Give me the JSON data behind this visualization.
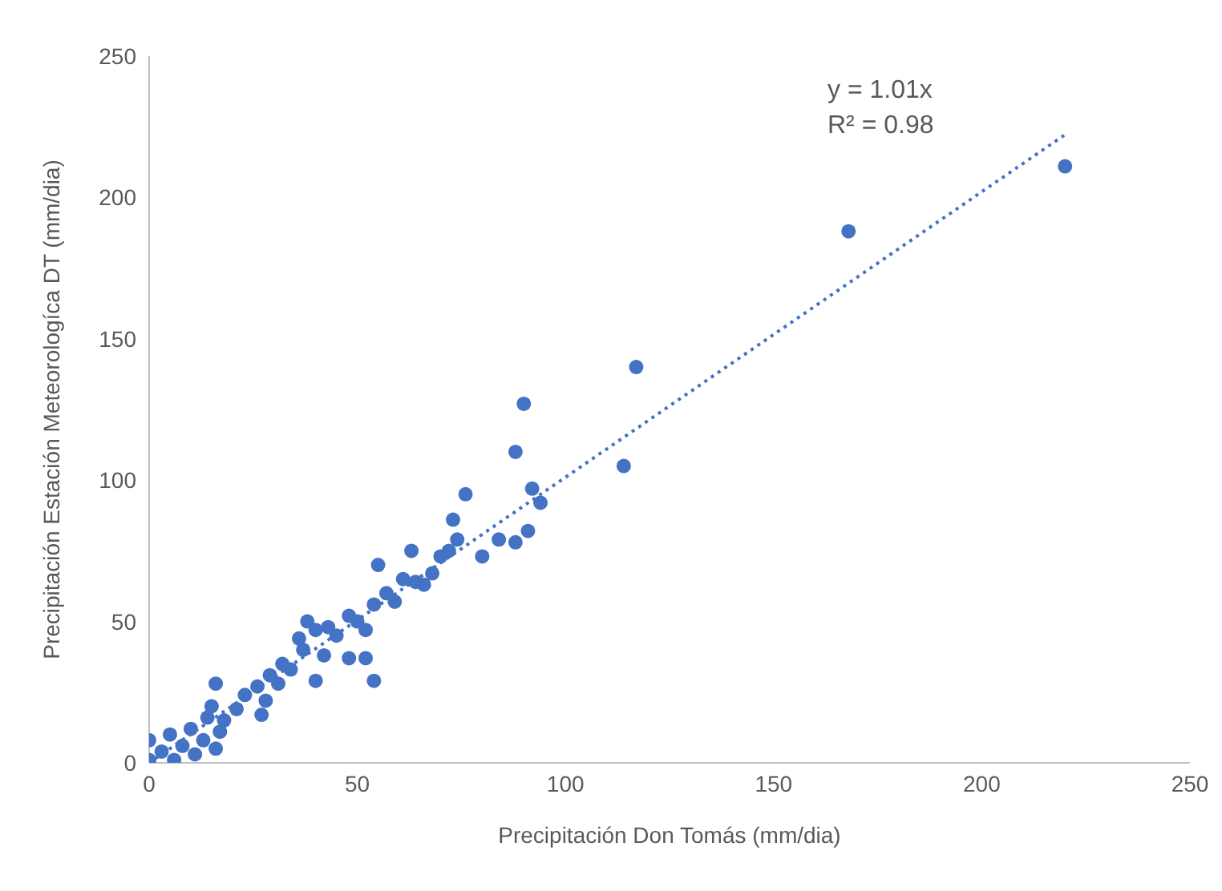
{
  "chart_data": {
    "type": "scatter",
    "xlabel": "Precipitación Don Tomás (mm/dia)",
    "ylabel": "Precipitación Estación Meteorologíca DT (mm/dia)",
    "xlim": [
      0,
      250
    ],
    "ylim": [
      0,
      250
    ],
    "xticks": [
      0,
      50,
      100,
      150,
      200,
      250
    ],
    "yticks": [
      0,
      50,
      100,
      150,
      200,
      250
    ],
    "marker": "circle",
    "annotations": [
      "y = 1.01x",
      "R² = 0.98"
    ],
    "series": [
      {
        "color": "#4472c4",
        "x": [
          0,
          0,
          3,
          5,
          6,
          8,
          10,
          11,
          13,
          14,
          16,
          15,
          16,
          17,
          18,
          21,
          23,
          26,
          27,
          28,
          29,
          31,
          32,
          34,
          36,
          37,
          38,
          40,
          40,
          42,
          43,
          45,
          48,
          48,
          50,
          52,
          52,
          54,
          54,
          55,
          57,
          59,
          61,
          63,
          64,
          66,
          68,
          70,
          72,
          73,
          74,
          76,
          80,
          84,
          88,
          88,
          90,
          91,
          92,
          94,
          114,
          117,
          168,
          220
        ],
        "values": [
          1,
          8,
          4,
          10,
          1,
          6,
          12,
          3,
          8,
          16,
          5,
          20,
          28,
          11,
          15,
          19,
          24,
          27,
          17,
          22,
          31,
          28,
          35,
          33,
          44,
          40,
          50,
          29,
          47,
          38,
          48,
          45,
          52,
          37,
          50,
          47,
          37,
          56,
          29,
          70,
          60,
          57,
          65,
          75,
          64,
          63,
          67,
          73,
          75,
          86,
          79,
          95,
          73,
          79,
          78,
          110,
          127,
          82,
          97,
          92,
          105,
          140,
          188,
          211
        ]
      },
      {
        "type": "line",
        "color": "#4472c4",
        "line_style": "dotted",
        "marker": "none",
        "x": [
          0,
          220
        ],
        "values": [
          0,
          222.2
        ]
      }
    ]
  }
}
